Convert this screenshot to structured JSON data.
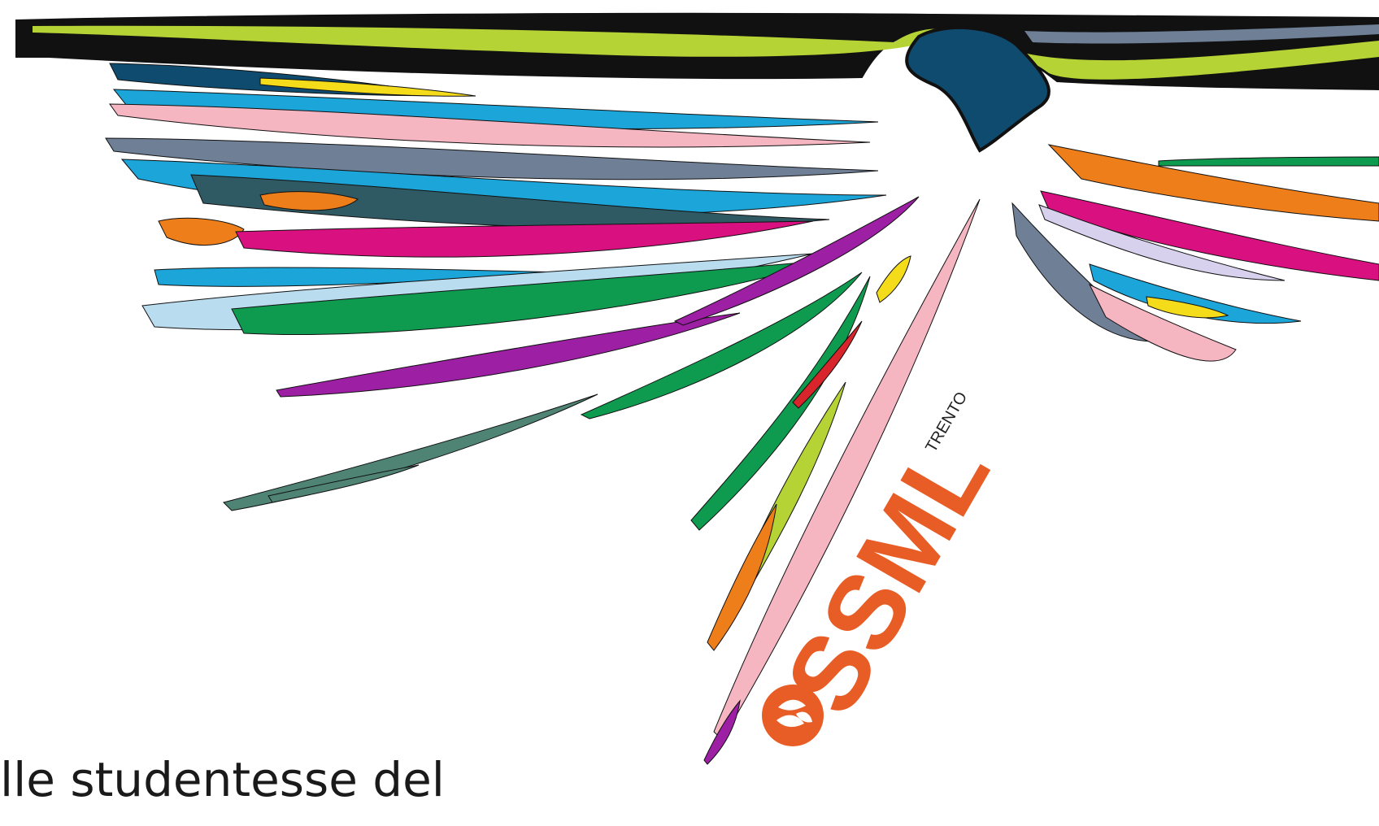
{
  "logo": {
    "wordmark": "SSML",
    "city": "TRENTO",
    "mark_color": "#e85d26"
  },
  "caption": {
    "text": "lle studentesse del"
  },
  "palette": {
    "black": "#111111",
    "lime": "#b5d334",
    "navy": "#0f4b6e",
    "cyan": "#1ba5d8",
    "pink": "#f5b6c2",
    "slate": "#6e7f96",
    "magenta": "#d9107f",
    "green": "#0e9a4f",
    "purple": "#9c1fa4",
    "orange": "#ee7e1a",
    "teal": "#4f8474",
    "yellow": "#f4dc1a",
    "red": "#d8242b",
    "lilac": "#d7d1ee",
    "lightblue": "#b9dcef",
    "logo_orange": "#e85d26"
  }
}
